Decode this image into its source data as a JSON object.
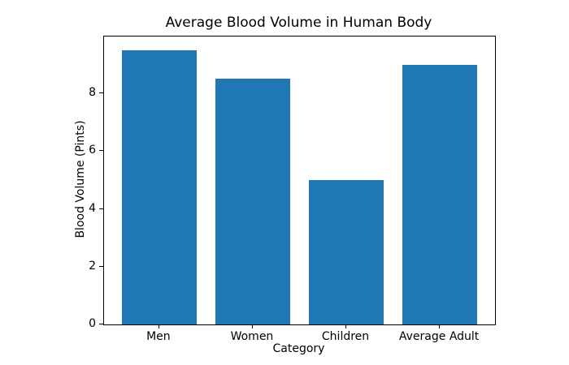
{
  "chart_data": {
    "type": "bar",
    "title": "Average Blood Volume in Human Body",
    "xlabel": "Category",
    "ylabel": "Blood Volume (Pints)",
    "categories": [
      "Men",
      "Women",
      "Children",
      "Average Adult"
    ],
    "values": [
      9.5,
      8.5,
      5.0,
      9.0
    ],
    "yticks": [
      0,
      2,
      4,
      6,
      8
    ],
    "ylim": [
      0,
      9.975
    ],
    "xlim": [
      -0.59,
      3.59
    ],
    "bar_width_units": 0.8,
    "bar_color": "#1f77b4",
    "spine_color": "#000000",
    "text_color": "#000000",
    "background_color": "#ffffff",
    "grid": "off",
    "legend": "none"
  }
}
